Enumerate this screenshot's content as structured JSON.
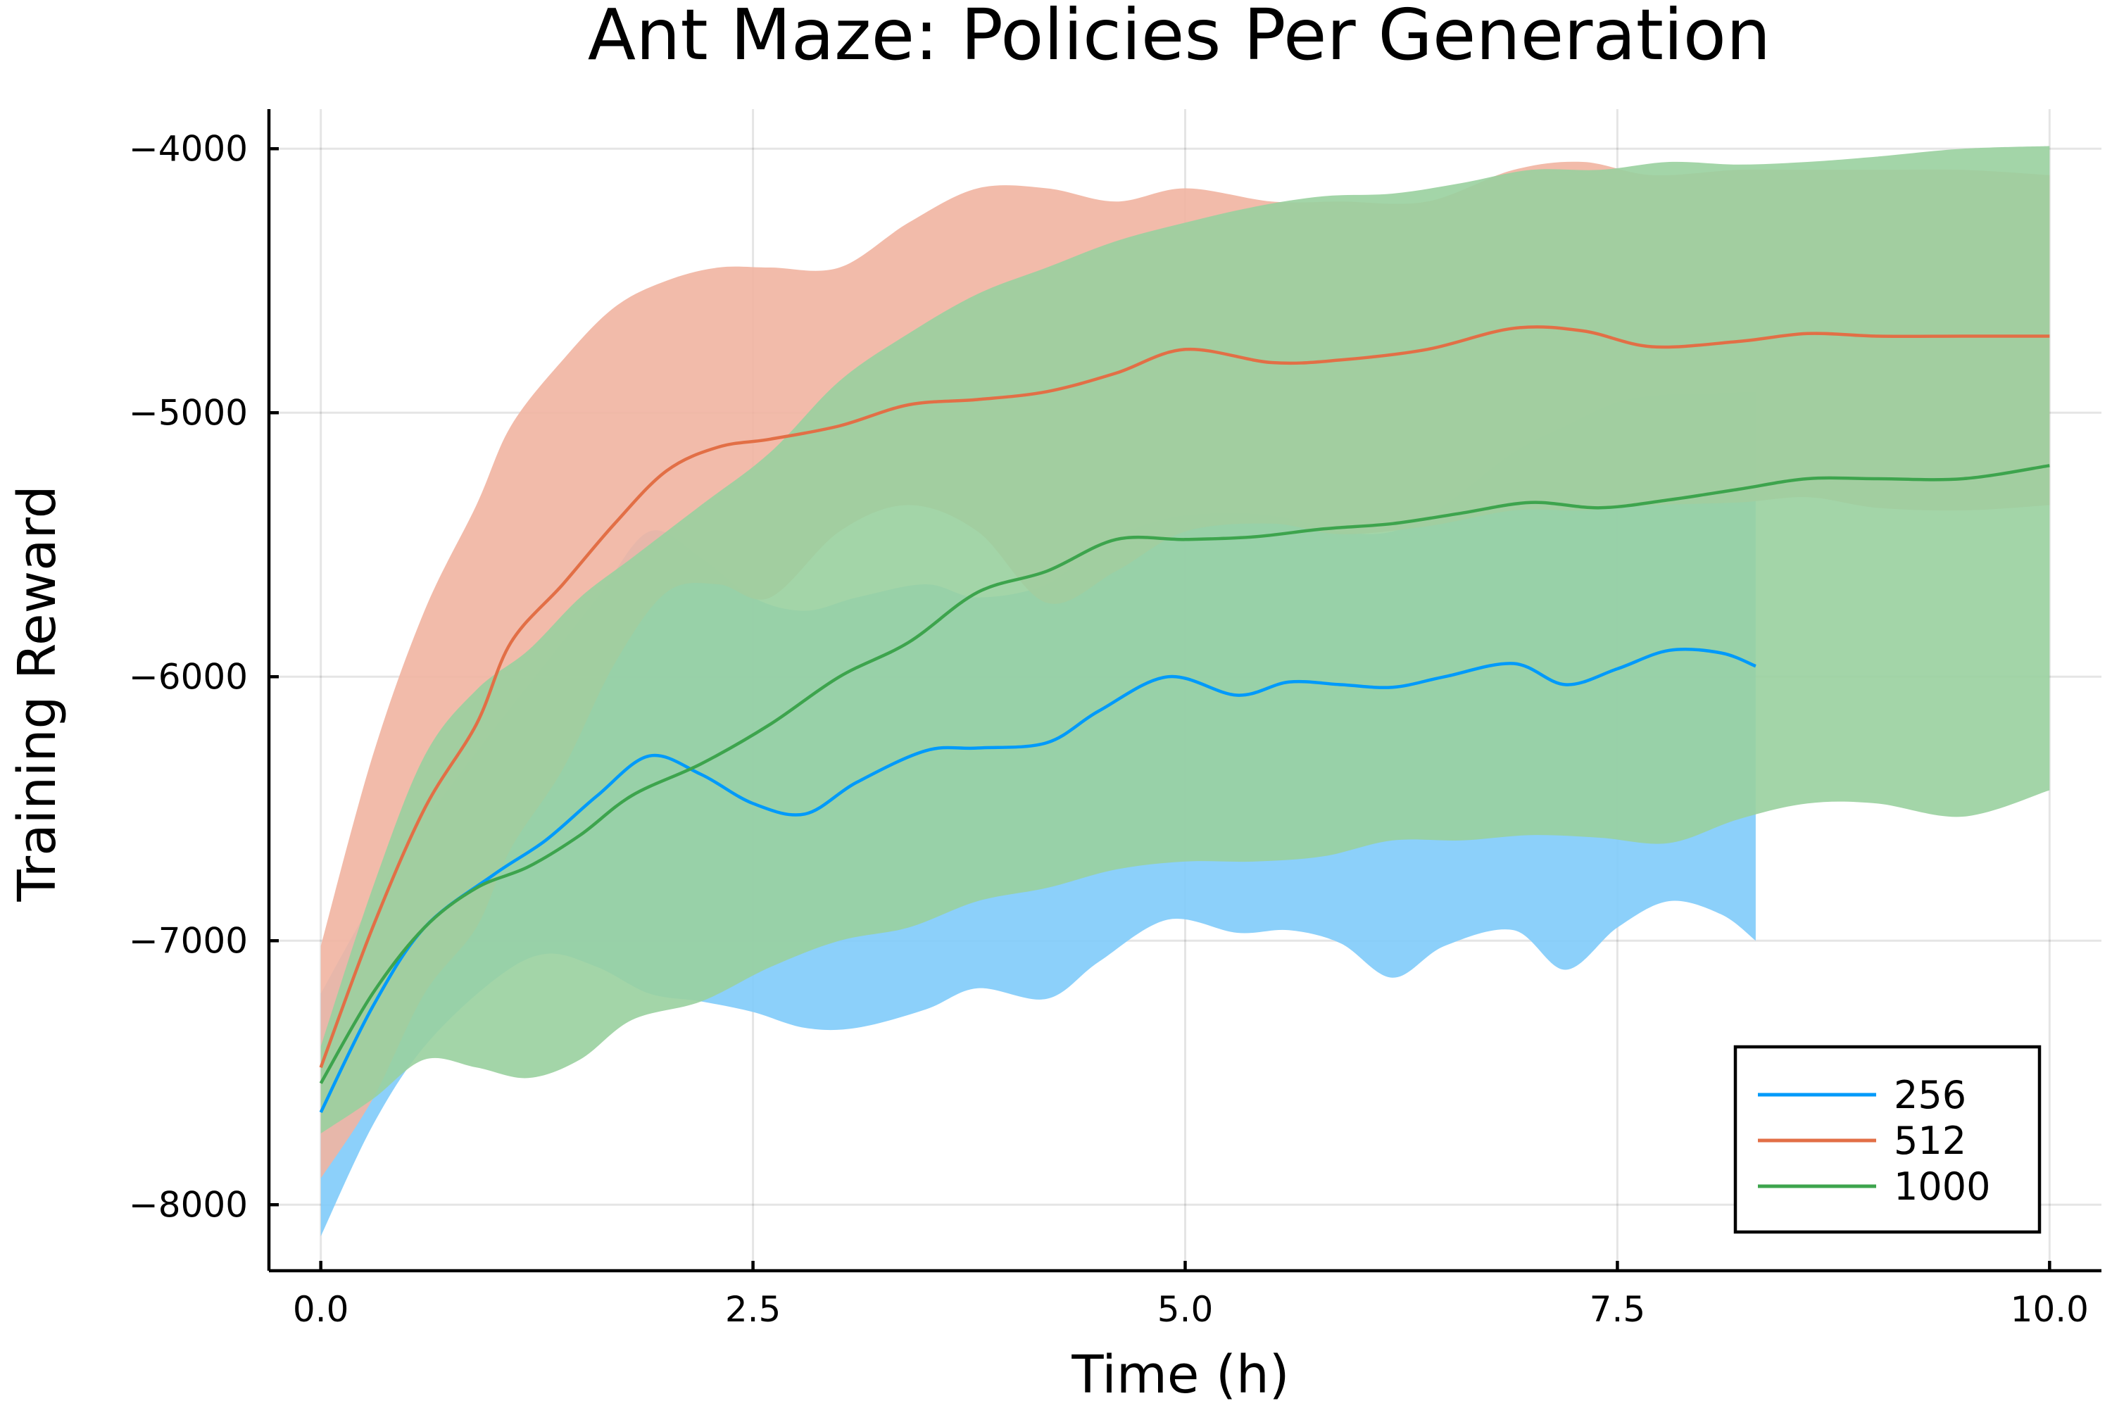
{
  "chart_data": {
    "type": "area",
    "title": "Ant Maze: Policies Per Generation",
    "xlabel": "Time (h)",
    "ylabel": "Training Reward",
    "xlim": [
      -0.3,
      10.3
    ],
    "ylim": [
      -8250,
      -3850
    ],
    "xticks": [
      0.0,
      2.5,
      5.0,
      7.5,
      10.0
    ],
    "xtick_labels": [
      "0.0",
      "2.5",
      "5.0",
      "7.5",
      "10.0"
    ],
    "yticks": [
      -8000,
      -7000,
      -6000,
      -5000,
      -4000
    ],
    "ytick_labels": [
      "−8000",
      "−7000",
      "−6000",
      "−5000",
      "−4000"
    ],
    "grid": true,
    "legend_position": "bottom-right",
    "series": [
      {
        "name": "256",
        "color": "#009AFA",
        "band_color": "#7FCBF9",
        "x": [
          0.0,
          0.3,
          0.6,
          1.0,
          1.3,
          1.6,
          1.9,
          2.2,
          2.5,
          2.8,
          3.1,
          3.5,
          3.8,
          4.2,
          4.5,
          4.9,
          5.3,
          5.6,
          5.9,
          6.2,
          6.5,
          6.9,
          7.2,
          7.5,
          7.8,
          8.1,
          8.3
        ],
        "mean": [
          -7650,
          -7250,
          -6950,
          -6750,
          -6620,
          -6450,
          -6300,
          -6370,
          -6480,
          -6520,
          -6400,
          -6280,
          -6270,
          -6250,
          -6130,
          -6000,
          -6070,
          -6020,
          -6030,
          -6040,
          -6000,
          -5950,
          -6030,
          -5970,
          -5900,
          -5910,
          -5960
        ],
        "upper": [
          -7200,
          -6850,
          -6550,
          -6200,
          -5950,
          -5700,
          -5450,
          -5550,
          -5700,
          -5750,
          -5700,
          -5650,
          -5700,
          -5650,
          -5500,
          -5400,
          -5380,
          -5400,
          -5450,
          -5450,
          -5350,
          -5150,
          -5050,
          -4960,
          -4930,
          -4925,
          -4920
        ],
        "lower": [
          -8120,
          -7700,
          -7400,
          -7150,
          -7050,
          -7100,
          -7200,
          -7230,
          -7270,
          -7330,
          -7330,
          -7260,
          -7180,
          -7220,
          -7080,
          -6920,
          -6970,
          -6960,
          -7010,
          -7140,
          -7020,
          -6960,
          -7110,
          -6950,
          -6850,
          -6900,
          -7000
        ]
      },
      {
        "name": "512",
        "color": "#E26F46",
        "band_color": "#F1B4A1",
        "x": [
          0.0,
          0.3,
          0.6,
          0.9,
          1.1,
          1.4,
          1.7,
          2.0,
          2.3,
          2.6,
          3.0,
          3.4,
          3.8,
          4.2,
          4.6,
          5.0,
          5.5,
          5.9,
          6.4,
          6.9,
          7.3,
          7.7,
          8.2,
          8.6,
          9.0,
          9.5,
          10.0
        ],
        "mean": [
          -7480,
          -6950,
          -6500,
          -6180,
          -5870,
          -5650,
          -5420,
          -5220,
          -5130,
          -5100,
          -5050,
          -4970,
          -4950,
          -4920,
          -4850,
          -4760,
          -4810,
          -4800,
          -4760,
          -4680,
          -4690,
          -4750,
          -4730,
          -4700,
          -4710,
          -4710,
          -4710
        ],
        "upper": [
          -7020,
          -6300,
          -5750,
          -5350,
          -5050,
          -4800,
          -4600,
          -4500,
          -4450,
          -4450,
          -4450,
          -4280,
          -4150,
          -4150,
          -4200,
          -4150,
          -4200,
          -4200,
          -4200,
          -4080,
          -4050,
          -4100,
          -4080,
          -4080,
          -4080,
          -4080,
          -4100
        ],
        "lower": [
          -7900,
          -7600,
          -7200,
          -6950,
          -6650,
          -6350,
          -5950,
          -5680,
          -5650,
          -5700,
          -5450,
          -5350,
          -5450,
          -5720,
          -5600,
          -5450,
          -5420,
          -5460,
          -5430,
          -5370,
          -5370,
          -5350,
          -5340,
          -5320,
          -5360,
          -5370,
          -5350
        ]
      },
      {
        "name": "1000",
        "color": "#3DA44D",
        "band_color": "#99D09F",
        "x": [
          0.0,
          0.3,
          0.6,
          0.9,
          1.2,
          1.5,
          1.8,
          2.2,
          2.6,
          3.0,
          3.4,
          3.8,
          4.2,
          4.6,
          5.0,
          5.4,
          5.8,
          6.2,
          6.6,
          7.0,
          7.4,
          7.8,
          8.2,
          8.6,
          9.0,
          9.5,
          10.0
        ],
        "mean": [
          -7540,
          -7200,
          -6950,
          -6800,
          -6720,
          -6600,
          -6450,
          -6330,
          -6180,
          -6000,
          -5870,
          -5680,
          -5600,
          -5480,
          -5480,
          -5470,
          -5440,
          -5420,
          -5380,
          -5340,
          -5360,
          -5330,
          -5290,
          -5250,
          -5250,
          -5250,
          -5200
        ],
        "upper": [
          -7400,
          -6800,
          -6300,
          -6050,
          -5900,
          -5700,
          -5550,
          -5350,
          -5150,
          -4880,
          -4700,
          -4550,
          -4450,
          -4350,
          -4280,
          -4220,
          -4180,
          -4170,
          -4130,
          -4080,
          -4080,
          -4050,
          -4060,
          -4050,
          -4030,
          -4000,
          -3990
        ],
        "lower": [
          -7730,
          -7600,
          -7450,
          -7480,
          -7520,
          -7450,
          -7300,
          -7230,
          -7100,
          -7000,
          -6950,
          -6850,
          -6800,
          -6730,
          -6700,
          -6700,
          -6680,
          -6620,
          -6620,
          -6600,
          -6610,
          -6630,
          -6540,
          -6480,
          -6480,
          -6530,
          -6430
        ]
      }
    ]
  }
}
